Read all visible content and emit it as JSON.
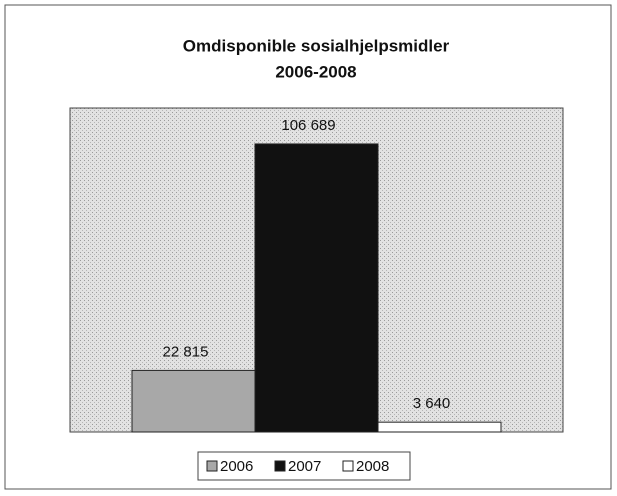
{
  "chart_data": {
    "type": "bar",
    "title": "Omdisponible sosialhjelpsmidler",
    "subtitle": "2006-2008",
    "categories": [
      null
    ],
    "series": [
      {
        "name": "2006",
        "color": "#a8a8a8",
        "values": [
          22815
        ],
        "value_labels": [
          "22 815"
        ]
      },
      {
        "name": "2007",
        "color": "#111111",
        "values": [
          106689
        ],
        "value_labels": [
          "106 689"
        ]
      },
      {
        "name": "2008",
        "color": "#ffffff",
        "values": [
          3640
        ],
        "value_labels": [
          "3 640"
        ]
      }
    ],
    "ylim": [
      0,
      120000
    ],
    "legend": "bottom"
  }
}
